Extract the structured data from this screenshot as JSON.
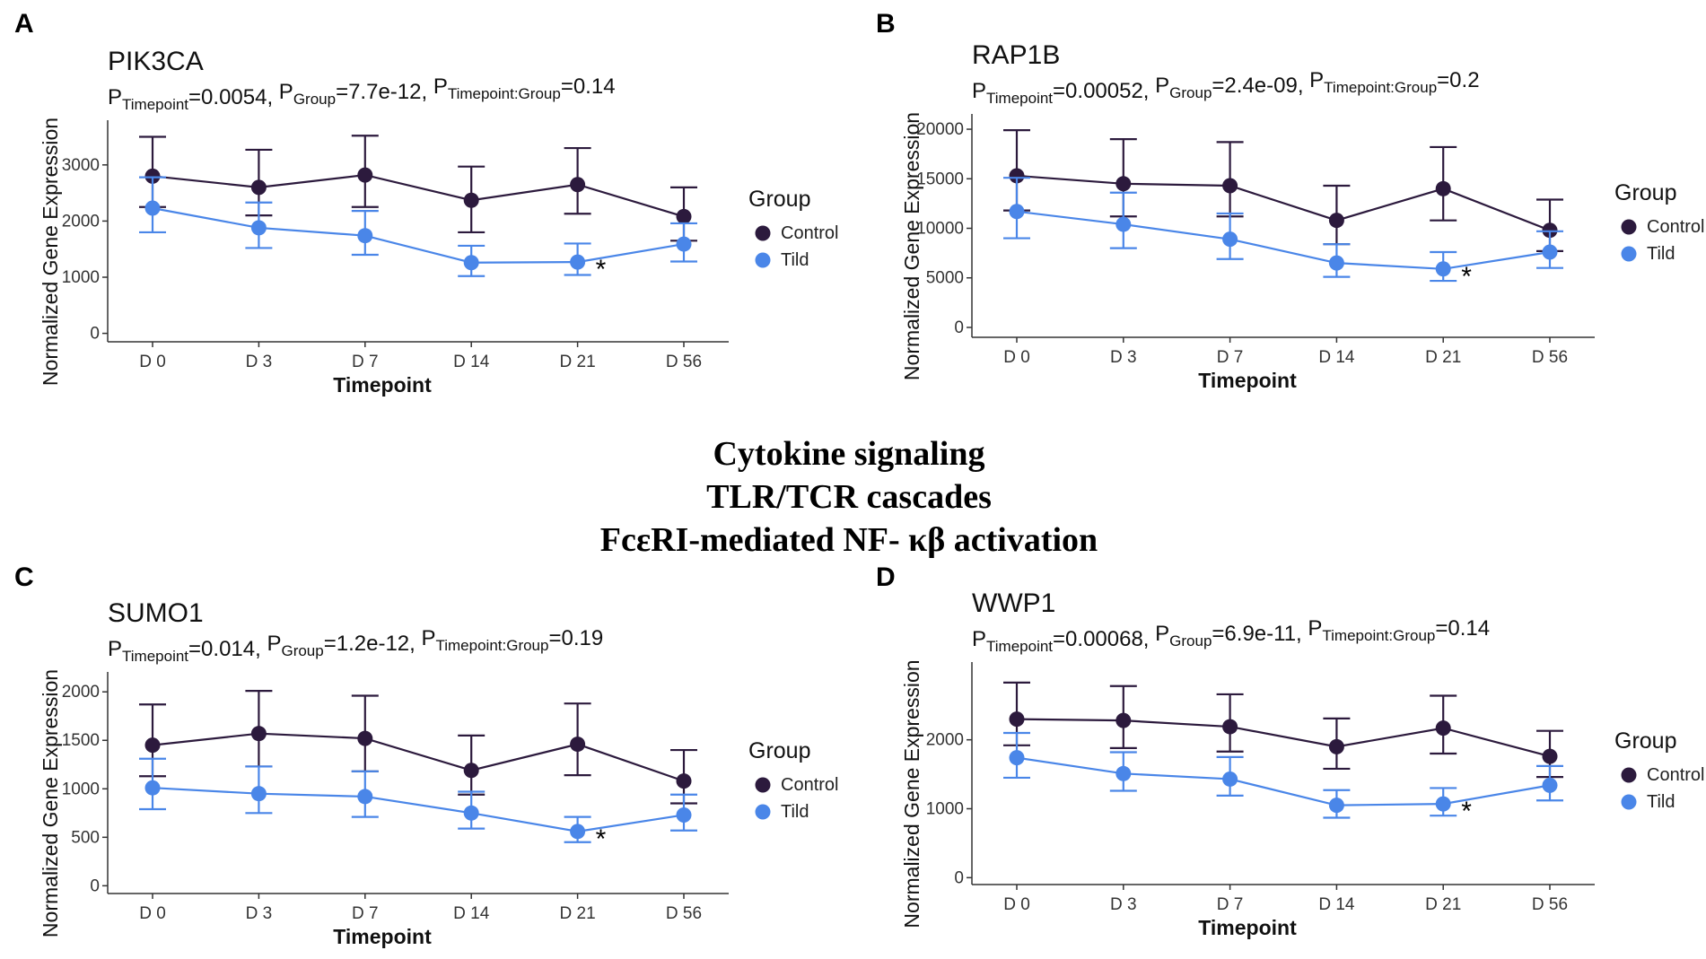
{
  "center_text": [
    "Cytokine signaling",
    "TLR/TCR cascades",
    "FcεRI-mediated NF- κβ activation"
  ],
  "colors": {
    "control": "#2c1a3d",
    "tild": "#4a86e8",
    "axis": "#333333"
  },
  "chart_data": [
    {
      "panel": "A",
      "type": "line",
      "title": "PIK3CA",
      "pvalues": {
        "prefix": "P",
        "timepoint_sub": "Timepoint",
        "timepoint_val": "=0.0054, ",
        "group_sub": "Group",
        "group_val": "=7.7e-12, ",
        "interaction_sub": "Timepoint:Group",
        "interaction_val": "=0.14"
      },
      "xlabel": "Timepoint",
      "ylabel": "Normalized Gene Expression",
      "categories": [
        "D 0",
        "D 3",
        "D 7",
        "D 14",
        "D 21",
        "D 56"
      ],
      "yticks": [
        0,
        1000,
        2000,
        3000
      ],
      "ytick_labels": [
        "0",
        "1000",
        "2000",
        "3000"
      ],
      "ylim": [
        -150,
        3700
      ],
      "legend_title": "Group",
      "series": [
        {
          "name": "Control",
          "values": [
            2800,
            2600,
            2820,
            2370,
            2650,
            2080
          ],
          "lower": [
            2250,
            2100,
            2250,
            1800,
            2130,
            1650
          ],
          "upper": [
            3500,
            3270,
            3520,
            2970,
            3300,
            2600
          ]
        },
        {
          "name": "Tild",
          "values": [
            2230,
            1880,
            1740,
            1260,
            1270,
            1590
          ],
          "lower": [
            1800,
            1520,
            1400,
            1020,
            1040,
            1280
          ],
          "upper": [
            2780,
            2330,
            2180,
            1560,
            1600,
            1960
          ]
        }
      ],
      "annotations": [
        {
          "text": "*",
          "category": "D 21"
        }
      ]
    },
    {
      "panel": "B",
      "type": "line",
      "title": "RAP1B",
      "pvalues": {
        "prefix": "P",
        "timepoint_sub": "Timepoint",
        "timepoint_val": "=0.00052, ",
        "group_sub": "Group",
        "group_val": "=2.4e-09, ",
        "interaction_sub": "Timepoint:Group",
        "interaction_val": "=0.2"
      },
      "xlabel": "Timepoint",
      "ylabel": "Normalized Gene Expression",
      "categories": [
        "D 0",
        "D 3",
        "D 7",
        "D 14",
        "D 21",
        "D 56"
      ],
      "yticks": [
        0,
        5000,
        10000,
        15000,
        20000
      ],
      "ytick_labels": [
        "0",
        "5000",
        "10000",
        "15000",
        "20000"
      ],
      "ylim": [
        -1000,
        21000
      ],
      "legend_title": "Group",
      "series": [
        {
          "name": "Control",
          "values": [
            15300,
            14500,
            14300,
            10800,
            14000,
            9800
          ],
          "lower": [
            11800,
            11200,
            11200,
            8400,
            10800,
            7700
          ],
          "upper": [
            19900,
            19000,
            18700,
            14300,
            18200,
            12900
          ]
        },
        {
          "name": "Tild",
          "values": [
            11700,
            10400,
            8900,
            6500,
            5900,
            7600
          ],
          "lower": [
            9000,
            8000,
            6900,
            5100,
            4700,
            6000
          ],
          "upper": [
            15100,
            13600,
            11500,
            8400,
            7600,
            9700
          ]
        }
      ],
      "annotations": [
        {
          "text": "*",
          "category": "D 21"
        }
      ]
    },
    {
      "panel": "C",
      "type": "line",
      "title": "SUMO1",
      "pvalues": {
        "prefix": "P",
        "timepoint_sub": "Timepoint",
        "timepoint_val": "=0.014, ",
        "group_sub": "Group",
        "group_val": "=1.2e-12, ",
        "interaction_sub": "Timepoint:Group",
        "interaction_val": "=0.19"
      },
      "xlabel": "Timepoint",
      "ylabel": "Normalized Gene Expression",
      "categories": [
        "D 0",
        "D 3",
        "D 7",
        "D 14",
        "D 21",
        "D 56"
      ],
      "yticks": [
        0,
        500,
        1000,
        1500,
        2000
      ],
      "ytick_labels": [
        "0",
        "500",
        "1000",
        "1500",
        "2000"
      ],
      "ylim": [
        -80,
        2150
      ],
      "legend_title": "Group",
      "series": [
        {
          "name": "Control",
          "values": [
            1450,
            1570,
            1520,
            1190,
            1460,
            1080
          ],
          "lower": [
            1130,
            1230,
            1180,
            940,
            1140,
            850
          ],
          "upper": [
            1870,
            2010,
            1960,
            1550,
            1880,
            1400
          ]
        },
        {
          "name": "Tild",
          "values": [
            1010,
            950,
            920,
            750,
            560,
            730
          ],
          "lower": [
            790,
            750,
            710,
            590,
            450,
            570
          ],
          "upper": [
            1310,
            1230,
            1180,
            970,
            710,
            940
          ]
        }
      ],
      "annotations": [
        {
          "text": "*",
          "category": "D 21"
        }
      ]
    },
    {
      "panel": "D",
      "type": "line",
      "title": "WWP1",
      "pvalues": {
        "prefix": "P",
        "timepoint_sub": "Timepoint",
        "timepoint_val": "=0.00068, ",
        "group_sub": "Group",
        "group_val": "=6.9e-11, ",
        "interaction_sub": "Timepoint:Group",
        "interaction_val": "=0.14"
      },
      "xlabel": "Timepoint",
      "ylabel": "Normalized Gene Expression",
      "categories": [
        "D 0",
        "D 3",
        "D 7",
        "D 14",
        "D 21",
        "D 56"
      ],
      "yticks": [
        0,
        1000,
        2000
      ],
      "ytick_labels": [
        "0",
        "1000",
        "2000"
      ],
      "ylim": [
        -100,
        3050
      ],
      "legend_title": "Group",
      "series": [
        {
          "name": "Control",
          "values": [
            2300,
            2280,
            2190,
            1900,
            2170,
            1760
          ],
          "lower": [
            1920,
            1880,
            1830,
            1580,
            1800,
            1460
          ],
          "upper": [
            2830,
            2780,
            2660,
            2310,
            2640,
            2130
          ]
        },
        {
          "name": "Tild",
          "values": [
            1740,
            1510,
            1430,
            1050,
            1070,
            1340
          ],
          "lower": [
            1450,
            1260,
            1190,
            870,
            900,
            1120
          ],
          "upper": [
            2100,
            1820,
            1750,
            1270,
            1300,
            1620
          ]
        }
      ],
      "annotations": [
        {
          "text": "*",
          "category": "D 21"
        }
      ]
    }
  ]
}
